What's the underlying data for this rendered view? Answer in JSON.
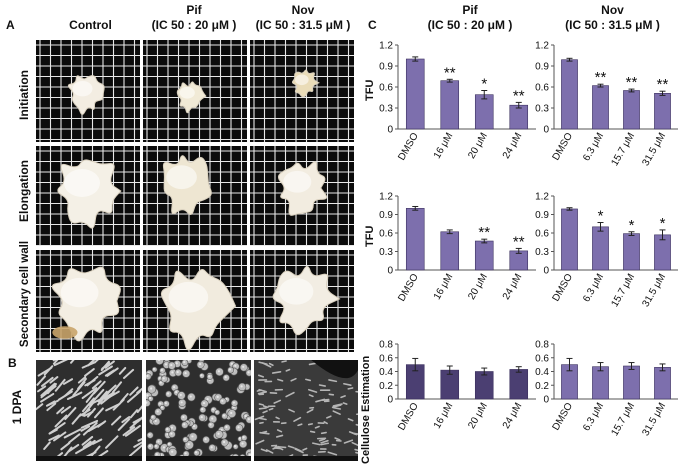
{
  "panels": {
    "a": "A",
    "b": "B",
    "c": "C"
  },
  "panel_a": {
    "columns": [
      "Control",
      "Pif",
      "Nov"
    ],
    "column_sub": [
      "",
      "(IC 50 : 20 μM )",
      "(IC 50 : 31.5 μM )"
    ],
    "rows": [
      "Initiation",
      "Elongation",
      "Secondary cell wall"
    ]
  },
  "panel_b": {
    "row": "1 DPA"
  },
  "panel_c": {
    "columns": [
      "Pif",
      "Nov"
    ],
    "column_sub": [
      "(IC 50 : 20 μM )",
      "(IC 50 : 31.5 μM )"
    ]
  },
  "colors": {
    "bar_dark": "#4b3f72",
    "bar_light": "#7d6fad",
    "grid_line": "#ffffff",
    "photo_bg": "#0b0b0b"
  },
  "chart_data": [
    {
      "type": "bar",
      "id": "pif-initiation",
      "categories": [
        "DMSO",
        "16 μM",
        "20 μM",
        "24 μM"
      ],
      "values": [
        1.0,
        0.69,
        0.49,
        0.34
      ],
      "errors": [
        0.03,
        0.02,
        0.06,
        0.04
      ],
      "significance": [
        "",
        "**",
        "*",
        "**"
      ],
      "ylabel": "TFU",
      "ylim": [
        0,
        1.2
      ],
      "yticks": [
        "0",
        "0.3",
        "0.6",
        "0.9",
        "1.2"
      ]
    },
    {
      "type": "bar",
      "id": "nov-initiation",
      "categories": [
        "DMSO",
        "6.3 μM",
        "15.7 μM",
        "31.5 μM"
      ],
      "values": [
        0.99,
        0.62,
        0.55,
        0.51
      ],
      "errors": [
        0.02,
        0.02,
        0.02,
        0.03
      ],
      "significance": [
        "",
        "**",
        "**",
        "**"
      ],
      "ylabel": "",
      "ylim": [
        0,
        1.2
      ],
      "yticks": [
        "0",
        "0.3",
        "0.6",
        "0.9",
        "1.2"
      ]
    },
    {
      "type": "bar",
      "id": "pif-elongation",
      "categories": [
        "DMSO",
        "16 μM",
        "20 μM",
        "24 μM"
      ],
      "values": [
        1.0,
        0.62,
        0.47,
        0.31
      ],
      "errors": [
        0.03,
        0.03,
        0.03,
        0.04
      ],
      "significance": [
        "",
        "",
        "**",
        "**"
      ],
      "ylabel": "TFU",
      "ylim": [
        0,
        1.2
      ],
      "yticks": [
        "0",
        "0.3",
        "0.6",
        "0.9",
        "1.2"
      ]
    },
    {
      "type": "bar",
      "id": "nov-elongation",
      "categories": [
        "DMSO",
        "6.3 μM",
        "15.7 μM",
        "31.5 μM"
      ],
      "values": [
        0.99,
        0.7,
        0.59,
        0.57
      ],
      "errors": [
        0.02,
        0.07,
        0.03,
        0.08
      ],
      "significance": [
        "",
        "*",
        "*",
        "*"
      ],
      "ylabel": "",
      "ylim": [
        0,
        1.2
      ],
      "yticks": [
        "0",
        "0.3",
        "0.6",
        "0.9",
        "1.2"
      ]
    },
    {
      "type": "bar",
      "id": "pif-cellulose",
      "categories": [
        "DMSO",
        "16 μM",
        "20 μM",
        "24 μM"
      ],
      "values": [
        0.5,
        0.42,
        0.4,
        0.43
      ],
      "errors": [
        0.09,
        0.06,
        0.05,
        0.04
      ],
      "significance": [
        "",
        "",
        "",
        ""
      ],
      "ylabel": "Cellulose Estimation",
      "ylim": [
        0,
        0.8
      ],
      "yticks": [
        "0",
        "0.2",
        "0.4",
        "0.6",
        "0.8"
      ]
    },
    {
      "type": "bar",
      "id": "nov-cellulose",
      "categories": [
        "DMSO",
        "6.3 μM",
        "15.7 μM",
        "31.5 μM"
      ],
      "values": [
        0.5,
        0.47,
        0.48,
        0.46
      ],
      "errors": [
        0.09,
        0.06,
        0.05,
        0.05
      ],
      "significance": [
        "",
        "",
        "",
        ""
      ],
      "ylabel": "",
      "ylim": [
        0,
        0.8
      ],
      "yticks": [
        "0",
        "0.2",
        "0.4",
        "0.6",
        "0.8"
      ]
    }
  ]
}
